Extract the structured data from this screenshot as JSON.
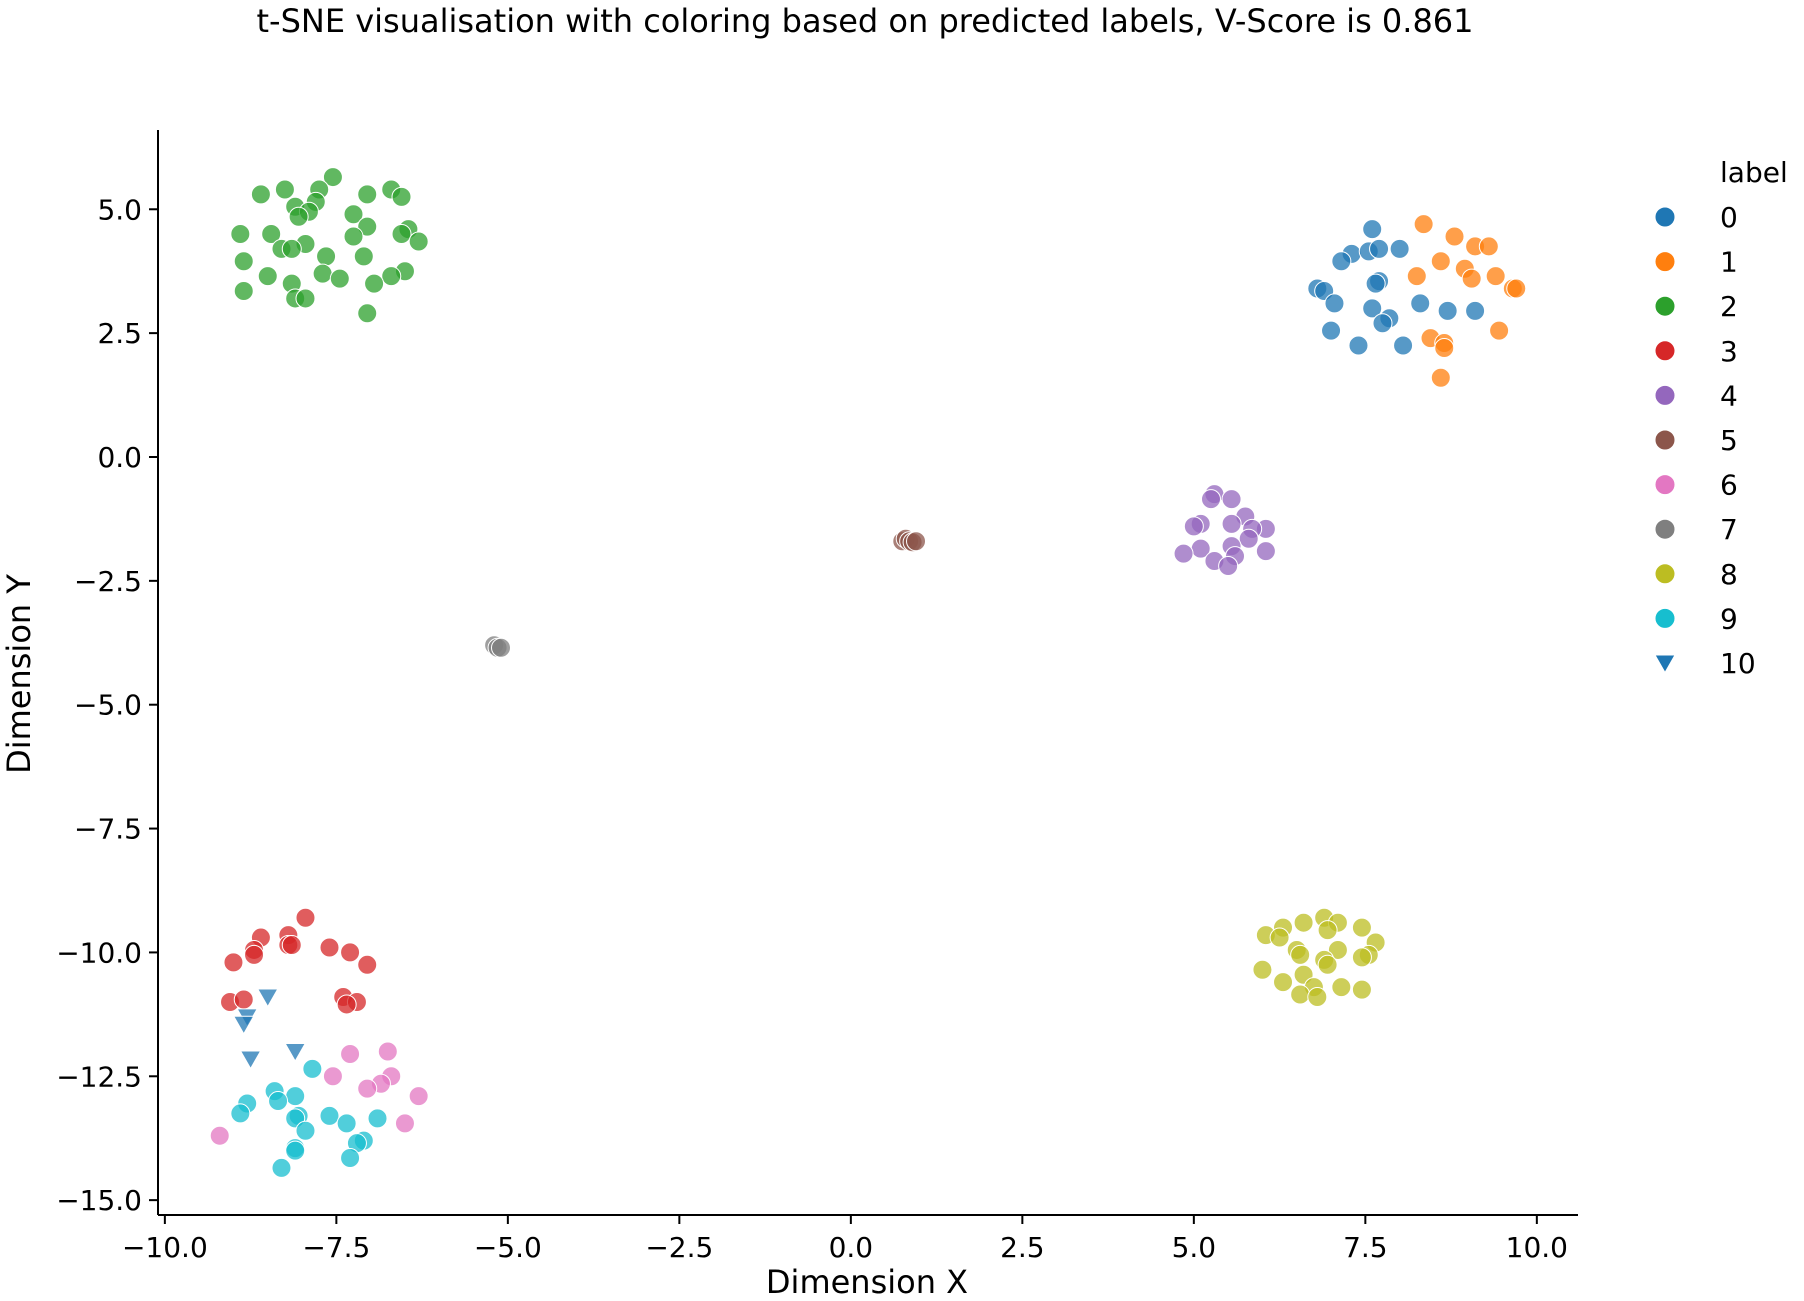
{
  "chart_data": {
    "type": "scatter",
    "title": "t-SNE visualisation with coloring based on predicted labels, V-Score is 0.861",
    "xlabel": "Dimension X",
    "ylabel": "Dimension Y",
    "xlim": [
      -10.1,
      10.6
    ],
    "ylim": [
      -15.3,
      6.6
    ],
    "xticks": [
      -10.0,
      -7.5,
      -5.0,
      -2.5,
      0.0,
      2.5,
      5.0,
      7.5,
      10.0
    ],
    "xtick_labels": [
      "−10.0",
      "−7.5",
      "−5.0",
      "−2.5",
      "0.0",
      "2.5",
      "5.0",
      "7.5",
      "10.0"
    ],
    "yticks": [
      5.0,
      2.5,
      0.0,
      -2.5,
      -5.0,
      -7.5,
      -10.0,
      -12.5,
      -15.0
    ],
    "ytick_labels": [
      "5.0",
      "2.5",
      "0.0",
      "−2.5",
      "−5.0",
      "−7.5",
      "−10.0",
      "−12.5",
      "−15.0"
    ],
    "grid": false,
    "legend": {
      "title": "label",
      "position": "right"
    },
    "series": [
      {
        "name": "0",
        "color": "#1f77b4",
        "marker": "circle",
        "points": [
          [
            7.6,
            4.6
          ],
          [
            7.3,
            4.1
          ],
          [
            7.55,
            4.15
          ],
          [
            7.7,
            4.2
          ],
          [
            8.0,
            4.2
          ],
          [
            7.15,
            3.95
          ],
          [
            7.7,
            3.55
          ],
          [
            7.65,
            3.5
          ],
          [
            6.8,
            3.4
          ],
          [
            6.9,
            3.35
          ],
          [
            7.05,
            3.1
          ],
          [
            7.6,
            3.0
          ],
          [
            8.3,
            3.1
          ],
          [
            8.7,
            2.95
          ],
          [
            9.1,
            2.95
          ],
          [
            7.85,
            2.8
          ],
          [
            7.75,
            2.7
          ],
          [
            7.0,
            2.55
          ],
          [
            7.4,
            2.25
          ],
          [
            8.05,
            2.25
          ]
        ]
      },
      {
        "name": "1",
        "color": "#ff7f0e",
        "marker": "circle",
        "points": [
          [
            8.35,
            4.7
          ],
          [
            8.8,
            4.45
          ],
          [
            9.1,
            4.25
          ],
          [
            9.3,
            4.25
          ],
          [
            8.6,
            3.95
          ],
          [
            8.95,
            3.8
          ],
          [
            8.25,
            3.65
          ],
          [
            9.05,
            3.6
          ],
          [
            9.4,
            3.65
          ],
          [
            9.65,
            3.4
          ],
          [
            9.7,
            3.4
          ],
          [
            9.45,
            2.55
          ],
          [
            8.45,
            2.4
          ],
          [
            8.65,
            2.3
          ],
          [
            8.65,
            2.2
          ],
          [
            8.6,
            1.6
          ]
        ]
      },
      {
        "name": "2",
        "color": "#2ca02c",
        "marker": "circle",
        "points": [
          [
            -7.55,
            5.65
          ],
          [
            -6.7,
            5.4
          ],
          [
            -8.25,
            5.4
          ],
          [
            -7.75,
            5.4
          ],
          [
            -8.6,
            5.3
          ],
          [
            -7.05,
            5.3
          ],
          [
            -6.55,
            5.25
          ],
          [
            -8.1,
            5.05
          ],
          [
            -7.8,
            5.15
          ],
          [
            -7.9,
            4.95
          ],
          [
            -8.05,
            4.85
          ],
          [
            -7.25,
            4.9
          ],
          [
            -7.05,
            4.65
          ],
          [
            -6.45,
            4.6
          ],
          [
            -6.55,
            4.5
          ],
          [
            -8.9,
            4.5
          ],
          [
            -8.45,
            4.5
          ],
          [
            -7.25,
            4.45
          ],
          [
            -6.3,
            4.35
          ],
          [
            -7.95,
            4.3
          ],
          [
            -8.3,
            4.2
          ],
          [
            -8.15,
            4.2
          ],
          [
            -7.65,
            4.05
          ],
          [
            -7.1,
            4.05
          ],
          [
            -8.85,
            3.95
          ],
          [
            -6.5,
            3.75
          ],
          [
            -7.7,
            3.7
          ],
          [
            -8.5,
            3.65
          ],
          [
            -7.45,
            3.6
          ],
          [
            -6.7,
            3.65
          ],
          [
            -8.15,
            3.5
          ],
          [
            -6.95,
            3.5
          ],
          [
            -8.85,
            3.35
          ],
          [
            -8.1,
            3.2
          ],
          [
            -7.95,
            3.2
          ],
          [
            -7.05,
            2.9
          ]
        ]
      },
      {
        "name": "3",
        "color": "#d62728",
        "marker": "circle",
        "points": [
          [
            -7.95,
            -9.3
          ],
          [
            -8.2,
            -9.65
          ],
          [
            -8.6,
            -9.7
          ],
          [
            -7.6,
            -9.9
          ],
          [
            -7.3,
            -10.0
          ],
          [
            -8.2,
            -9.85
          ],
          [
            -8.15,
            -9.85
          ],
          [
            -8.7,
            -9.95
          ],
          [
            -8.7,
            -10.05
          ],
          [
            -7.05,
            -10.25
          ],
          [
            -9.0,
            -10.2
          ],
          [
            -7.4,
            -10.9
          ],
          [
            -7.2,
            -11.0
          ],
          [
            -7.35,
            -11.05
          ],
          [
            -9.05,
            -11.0
          ],
          [
            -8.85,
            -10.95
          ]
        ]
      },
      {
        "name": "4",
        "color": "#9467bd",
        "marker": "circle",
        "points": [
          [
            5.3,
            -0.75
          ],
          [
            5.25,
            -0.85
          ],
          [
            5.55,
            -0.85
          ],
          [
            5.75,
            -1.2
          ],
          [
            5.1,
            -1.35
          ],
          [
            5.55,
            -1.35
          ],
          [
            5.0,
            -1.4
          ],
          [
            6.05,
            -1.45
          ],
          [
            5.85,
            -1.45
          ],
          [
            5.8,
            -1.65
          ],
          [
            5.55,
            -1.8
          ],
          [
            5.1,
            -1.85
          ],
          [
            6.05,
            -1.9
          ],
          [
            4.85,
            -1.95
          ],
          [
            5.6,
            -2.0
          ],
          [
            5.3,
            -2.1
          ],
          [
            5.5,
            -2.2
          ]
        ]
      },
      {
        "name": "5",
        "color": "#8c564b",
        "marker": "circle",
        "points": [
          [
            0.75,
            -1.7
          ],
          [
            0.8,
            -1.65
          ],
          [
            0.85,
            -1.7
          ],
          [
            0.9,
            -1.72
          ],
          [
            0.95,
            -1.7
          ]
        ]
      },
      {
        "name": "6",
        "color": "#e377c2",
        "marker": "circle",
        "points": [
          [
            -6.75,
            -12.0
          ],
          [
            -7.3,
            -12.05
          ],
          [
            -7.55,
            -12.5
          ],
          [
            -6.7,
            -12.5
          ],
          [
            -6.85,
            -12.65
          ],
          [
            -7.05,
            -12.75
          ],
          [
            -6.3,
            -12.9
          ],
          [
            -6.5,
            -13.45
          ],
          [
            -9.2,
            -13.7
          ]
        ]
      },
      {
        "name": "7",
        "color": "#7f7f7f",
        "marker": "circle",
        "points": [
          [
            -5.2,
            -3.8
          ],
          [
            -5.15,
            -3.85
          ],
          [
            -5.1,
            -3.85
          ]
        ]
      },
      {
        "name": "8",
        "color": "#bcbd22",
        "marker": "circle",
        "points": [
          [
            6.9,
            -9.3
          ],
          [
            7.1,
            -9.4
          ],
          [
            6.6,
            -9.4
          ],
          [
            6.3,
            -9.5
          ],
          [
            6.95,
            -9.55
          ],
          [
            7.45,
            -9.5
          ],
          [
            6.05,
            -9.65
          ],
          [
            6.25,
            -9.7
          ],
          [
            7.65,
            -9.8
          ],
          [
            6.5,
            -9.95
          ],
          [
            7.1,
            -9.95
          ],
          [
            6.55,
            -10.05
          ],
          [
            7.55,
            -10.05
          ],
          [
            7.45,
            -10.1
          ],
          [
            6.9,
            -10.15
          ],
          [
            6.95,
            -10.25
          ],
          [
            6.0,
            -10.35
          ],
          [
            6.6,
            -10.45
          ],
          [
            6.3,
            -10.6
          ],
          [
            6.75,
            -10.7
          ],
          [
            7.15,
            -10.7
          ],
          [
            7.45,
            -10.75
          ],
          [
            6.55,
            -10.85
          ],
          [
            6.8,
            -10.9
          ]
        ]
      },
      {
        "name": "9",
        "color": "#17becf",
        "marker": "circle",
        "points": [
          [
            -7.85,
            -12.35
          ],
          [
            -8.4,
            -12.8
          ],
          [
            -8.1,
            -12.9
          ],
          [
            -8.35,
            -13.0
          ],
          [
            -8.8,
            -13.05
          ],
          [
            -8.9,
            -13.25
          ],
          [
            -8.05,
            -13.3
          ],
          [
            -8.1,
            -13.35
          ],
          [
            -7.6,
            -13.3
          ],
          [
            -6.9,
            -13.35
          ],
          [
            -7.35,
            -13.45
          ],
          [
            -7.95,
            -13.6
          ],
          [
            -7.1,
            -13.8
          ],
          [
            -7.2,
            -13.85
          ],
          [
            -8.1,
            -13.95
          ],
          [
            -8.1,
            -14.0
          ],
          [
            -7.3,
            -14.15
          ],
          [
            -8.3,
            -14.35
          ]
        ]
      },
      {
        "name": "10",
        "color": "#1f77b4",
        "marker": "triangle-down",
        "points": [
          [
            -8.5,
            -10.9
          ],
          [
            -8.8,
            -11.3
          ],
          [
            -8.85,
            -11.45
          ],
          [
            -8.1,
            -12.0
          ],
          [
            -8.75,
            -12.15
          ]
        ]
      }
    ]
  }
}
